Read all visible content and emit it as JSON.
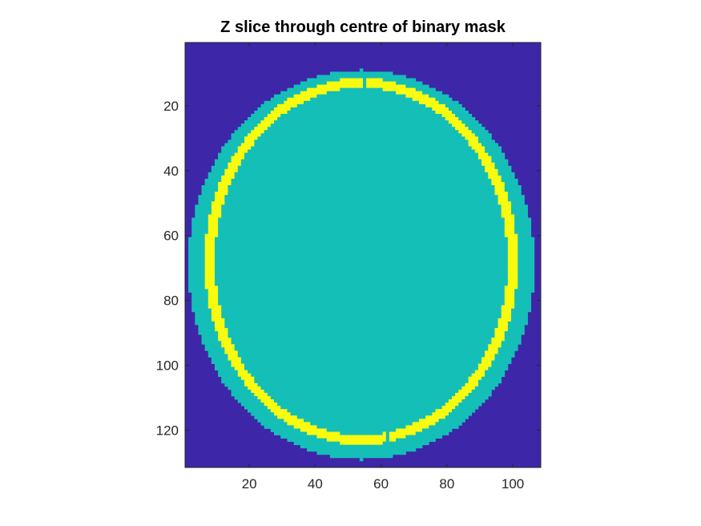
{
  "chart_data": {
    "type": "heatmap",
    "title": "Z slice through centre of binary mask",
    "xlabel": "",
    "ylabel": "",
    "xlim": [
      0.5,
      108.5
    ],
    "ylim": [
      0.5,
      131.5
    ],
    "y_reversed": true,
    "grid": false,
    "x_ticks": [
      20,
      40,
      60,
      80,
      100
    ],
    "y_ticks": [
      20,
      40,
      60,
      80,
      100,
      120
    ],
    "colors": {
      "background": "#3e26a8",
      "head": "#14bfb8",
      "ring": "#f9fb0e",
      "axis": "#262626"
    },
    "regions": {
      "background_value": 0,
      "head_value": 1,
      "ring_value": 2,
      "head_center": [
        54,
        69
      ],
      "head_radii": [
        52.5,
        60
      ],
      "ring_center": [
        54,
        68
      ],
      "ring_outer_radii": [
        47.5,
        56.5
      ],
      "ring_inner_radii": [
        44.5,
        53.5
      ],
      "ring_gaps_at_x": [
        55,
        62
      ]
    }
  }
}
